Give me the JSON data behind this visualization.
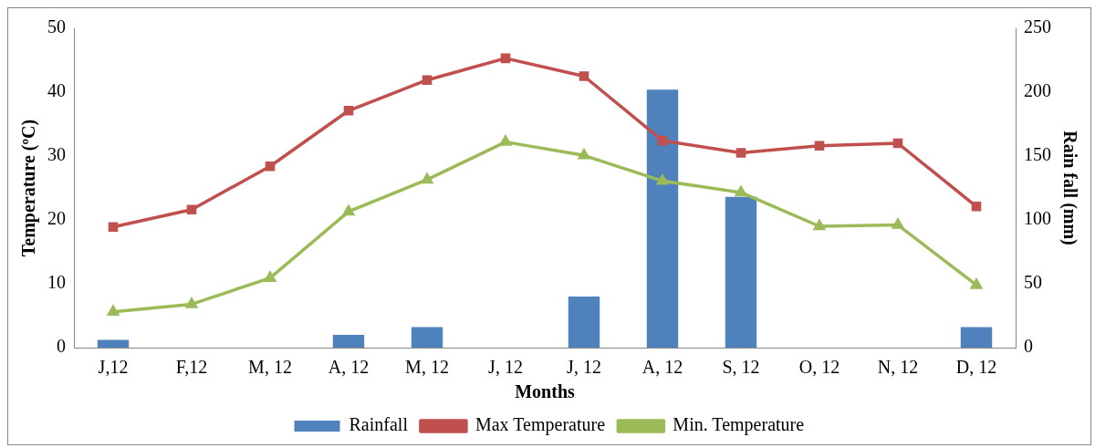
{
  "chart_data": {
    "type": "line",
    "xlabel": "Months",
    "ylabel": "Temperature (ºC)",
    "y2label": "Rain fall (mm)",
    "categories": [
      "J,12",
      "F,12",
      "M, 12",
      "A, 12",
      "M, 12",
      "J, 12",
      "J, 12",
      "A, 12",
      "S, 12",
      "O, 12",
      "N, 12",
      "D, 12"
    ],
    "series": [
      {
        "name": "Rainfall",
        "type": "bar",
        "axis": "y2",
        "color": "#4f81bd",
        "values": [
          6,
          0,
          0,
          10,
          16,
          0,
          40,
          202,
          118,
          0,
          0,
          16
        ]
      },
      {
        "name": "Max Temperature",
        "marker": "square",
        "color": "#c0504d",
        "values": [
          18.9,
          21.6,
          28.4,
          37.1,
          41.9,
          45.3,
          42.5,
          32.4,
          30.5,
          31.6,
          32,
          22.1
        ]
      },
      {
        "name": "Min. Temperature",
        "marker": "triangle",
        "color": "#9bbb59",
        "values": [
          5.6,
          6.8,
          10.9,
          21.3,
          26.3,
          32.2,
          30.1,
          26.1,
          24.3,
          19,
          19.2,
          9.8
        ]
      }
    ],
    "ylim": [
      0,
      50
    ],
    "yticks": [
      0,
      10,
      20,
      30,
      40,
      50
    ],
    "y2lim": [
      0,
      250
    ],
    "y2ticks": [
      0,
      50,
      100,
      150,
      200,
      250
    ],
    "grid": false,
    "legend": "bottom",
    "line_style": "solid"
  }
}
